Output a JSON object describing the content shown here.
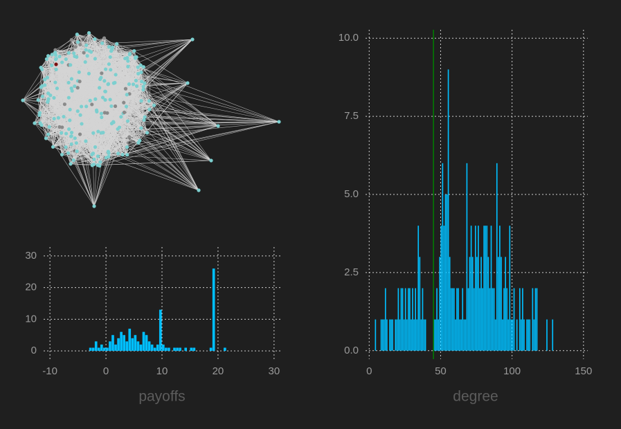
{
  "chart_data": [
    {
      "type": "histogram",
      "xlabel": "payoffs",
      "color": "#00bfff",
      "grid": true,
      "bins": [
        -3,
        -2.5,
        -2,
        -1.5,
        -1,
        -0.5,
        0,
        0.5,
        1,
        1.5,
        2,
        2.5,
        3,
        3.5,
        4,
        4.5,
        5,
        5.5,
        6,
        6.5,
        7,
        7.5,
        8,
        8.5,
        9,
        9.5,
        10,
        10.5,
        11,
        11.5,
        12,
        12.5,
        13,
        13.5,
        14,
        14.5,
        15,
        15.5,
        16,
        16.5,
        17,
        17.5,
        18,
        18.5,
        19,
        19.5,
        20,
        20.5,
        21,
        21.5,
        22
      ],
      "values": [
        1,
        1,
        3,
        1,
        2,
        1,
        1,
        3,
        5,
        2,
        4,
        6,
        5,
        3,
        7,
        4,
        5,
        3,
        2,
        6,
        5,
        3,
        2,
        1,
        2,
        13,
        2,
        1,
        1,
        0,
        1,
        1,
        1,
        0,
        1,
        0,
        1,
        1,
        0,
        0,
        0,
        0,
        0,
        1,
        26,
        0,
        0,
        0,
        1,
        0
      ],
      "xlim": [
        -11.5,
        31.5
      ],
      "xticks": [
        -10,
        0,
        10,
        20,
        30
      ],
      "ylim": [
        -2.6,
        32.8
      ],
      "yticks": [
        0,
        10,
        20,
        30
      ]
    },
    {
      "type": "histogram",
      "xlabel": "degree",
      "color": "#00bfff",
      "grid": true,
      "vline": 45,
      "vline_color": "#008000",
      "bins": [
        3,
        4,
        5,
        6,
        7,
        8,
        9,
        10,
        11,
        12,
        13,
        14,
        15,
        16,
        17,
        18,
        19,
        20,
        21,
        22,
        23,
        24,
        25,
        26,
        27,
        28,
        29,
        30,
        31,
        32,
        33,
        34,
        35,
        36,
        37,
        38,
        39,
        40,
        41,
        42,
        43,
        44,
        45,
        46,
        47,
        48,
        49,
        50,
        51,
        52,
        53,
        54,
        55,
        56,
        57,
        58,
        59,
        60,
        61,
        62,
        63,
        64,
        65,
        66,
        67,
        68,
        69,
        70,
        71,
        72,
        73,
        74,
        75,
        76,
        77,
        78,
        79,
        80,
        81,
        82,
        83,
        84,
        85,
        86,
        87,
        88,
        89,
        90,
        91,
        92,
        93,
        94,
        95,
        96,
        97,
        98,
        99,
        100,
        101,
        102,
        103,
        104,
        105,
        106,
        107,
        108,
        109,
        110,
        111,
        112,
        113,
        114,
        115,
        116,
        117,
        118,
        119,
        120,
        121,
        122,
        123,
        124,
        125,
        126,
        127,
        128,
        129
      ],
      "values": [
        0,
        1,
        0,
        0,
        0,
        1,
        1,
        1,
        2,
        1,
        0,
        1,
        1,
        1,
        0,
        1,
        1,
        2,
        1,
        2,
        2,
        1,
        2,
        1,
        2,
        2,
        1,
        2,
        1,
        2,
        1,
        4,
        3,
        1,
        2,
        1,
        1,
        0,
        0,
        0,
        0,
        0,
        1,
        1,
        2,
        1,
        3,
        4,
        6,
        4,
        5,
        5,
        9,
        3,
        2,
        2,
        2,
        1,
        2,
        2,
        1,
        1,
        2,
        1,
        1,
        6,
        2,
        3,
        4,
        3,
        2,
        4,
        3,
        4,
        2,
        3,
        2,
        4,
        4,
        4,
        3,
        2,
        4,
        2,
        2,
        1,
        6,
        3,
        4,
        3,
        1,
        2,
        3,
        2,
        1,
        4,
        1,
        1,
        2,
        0,
        1,
        0,
        2,
        1,
        2,
        1,
        0,
        1,
        1,
        1,
        0,
        2,
        1,
        2,
        2,
        0,
        0,
        0,
        0,
        0,
        0,
        1,
        0,
        0,
        0,
        1
      ],
      "xlim": [
        -4,
        153
      ],
      "xticks": [
        0,
        50,
        100,
        150
      ],
      "ylim": [
        -0.27,
        10.27
      ],
      "yticks": [
        {
          "value": 0,
          "label": "0.0"
        },
        2.5,
        {
          "value": 5,
          "label": "5.0"
        },
        7.5,
        {
          "value": 10,
          "label": "10.0"
        }
      ]
    }
  ]
}
